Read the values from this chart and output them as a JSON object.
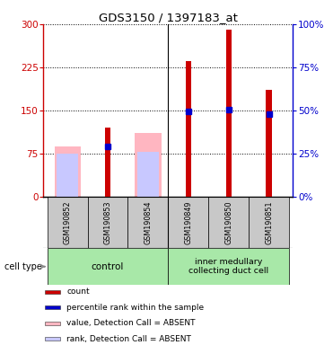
{
  "title": "GDS3150 / 1397183_at",
  "samples": [
    "GSM190852",
    "GSM190853",
    "GSM190854",
    "GSM190849",
    "GSM190850",
    "GSM190851"
  ],
  "control_count": 3,
  "red_counts": [
    null,
    120,
    null,
    235,
    290,
    185
  ],
  "pink_values": [
    88,
    null,
    110,
    null,
    null,
    null
  ],
  "lightblue_ranks": [
    75,
    null,
    78,
    null,
    null,
    null
  ],
  "blue_ranks_left": [
    null,
    87,
    null,
    148,
    151,
    143
  ],
  "ylim_left": [
    0,
    300
  ],
  "ylim_right": [
    0,
    100
  ],
  "yticks_left": [
    0,
    75,
    150,
    225,
    300
  ],
  "yticks_right": [
    0,
    25,
    50,
    75,
    100
  ],
  "left_axis_color": "#cc0000",
  "right_axis_color": "#0000cc",
  "sample_bg": "#c8c8c8",
  "group_bg": "#a8e8a8",
  "group1_label": "control",
  "group2_label": "inner medullary\ncollecting duct cell",
  "legend_items": [
    {
      "color": "#cc0000",
      "label": "count"
    },
    {
      "color": "#0000cc",
      "label": "percentile rank within the sample"
    },
    {
      "color": "#ffb6c1",
      "label": "value, Detection Call = ABSENT"
    },
    {
      "color": "#c8c8ff",
      "label": "rank, Detection Call = ABSENT"
    }
  ]
}
